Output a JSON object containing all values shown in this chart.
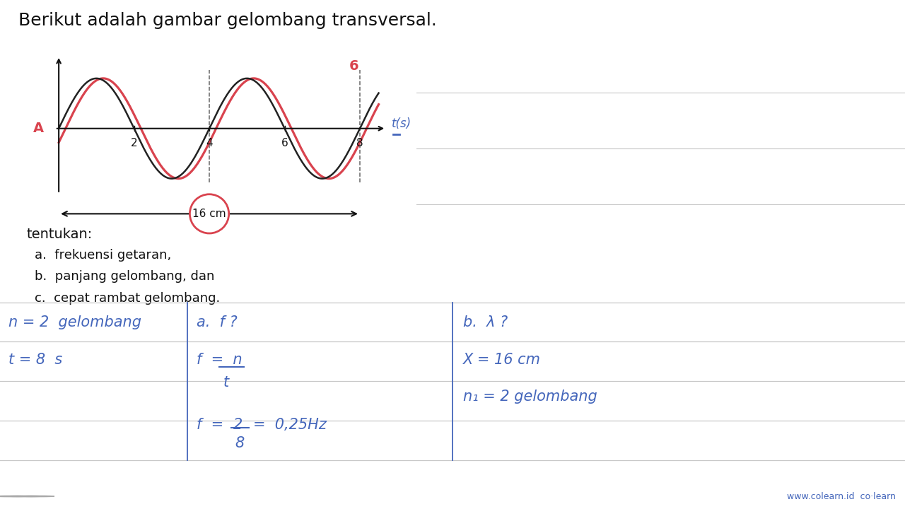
{
  "title": "Berikut adalah gambar gelombang transversal.",
  "wave_color_pink": "#d9434e",
  "wave_color_black": "#222222",
  "axis_color": "#111111",
  "bg_color": "#ffffff",
  "tentukan_text": "tentukan:",
  "items": [
    "a.  frekuensi getaran,",
    "b.  panjang gelombang, dan",
    "c.  cepat rambat gelombang."
  ],
  "grid_line_color": "#c8c8c8",
  "blue_color": "#4466bb",
  "dashed_color": "#666666",
  "label_16cm": "16 cm",
  "tick_labels": [
    "2",
    "4",
    "6"
  ],
  "axis_label_t": "t(s)",
  "axis_label_A": "A",
  "label_8": "8",
  "label_6_pink": "6"
}
